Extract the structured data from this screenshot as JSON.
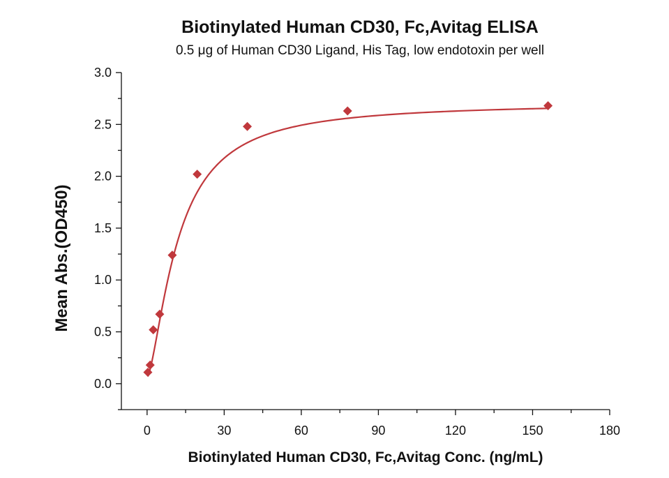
{
  "chart_data": {
    "type": "scatter",
    "title": "Biotinylated Human CD30, Fc,Avitag ELISA",
    "subtitle": "0.5 μg of Human CD30 Ligand, His Tag, low endotoxin per well",
    "xlabel": "Biotinylated Human CD30, Fc,Avitag Conc. (ng/mL)",
    "ylabel": "Mean Abs.(OD450)",
    "xlim": [
      -10,
      180
    ],
    "ylim": [
      -0.25,
      3.0
    ],
    "x_ticks": [
      0,
      30,
      60,
      90,
      120,
      150,
      180
    ],
    "x_tick_labels": [
      "0",
      "30",
      "60",
      "90",
      "120",
      "150",
      "180"
    ],
    "y_ticks": [
      0.0,
      0.5,
      1.0,
      1.5,
      2.0,
      2.5,
      3.0
    ],
    "y_tick_labels": [
      "0.0",
      "0.5",
      "1.0",
      "1.5",
      "2.0",
      "2.5",
      "3.0"
    ],
    "grid": false,
    "series": [
      {
        "marker": "diamond",
        "color": "#c0383c",
        "x": [
          0.3,
          1.2,
          2.4,
          4.9,
          9.8,
          19.5,
          39.0,
          78.0,
          156.0
        ],
        "y": [
          0.11,
          0.18,
          0.52,
          0.67,
          1.24,
          2.02,
          2.48,
          2.63,
          2.68
        ]
      }
    ],
    "fit_curve": {
      "type": "4PL",
      "color": "#c0383c",
      "bottom": 0.06,
      "top": 2.71,
      "ec50": 12.0,
      "hill": 1.5
    }
  }
}
